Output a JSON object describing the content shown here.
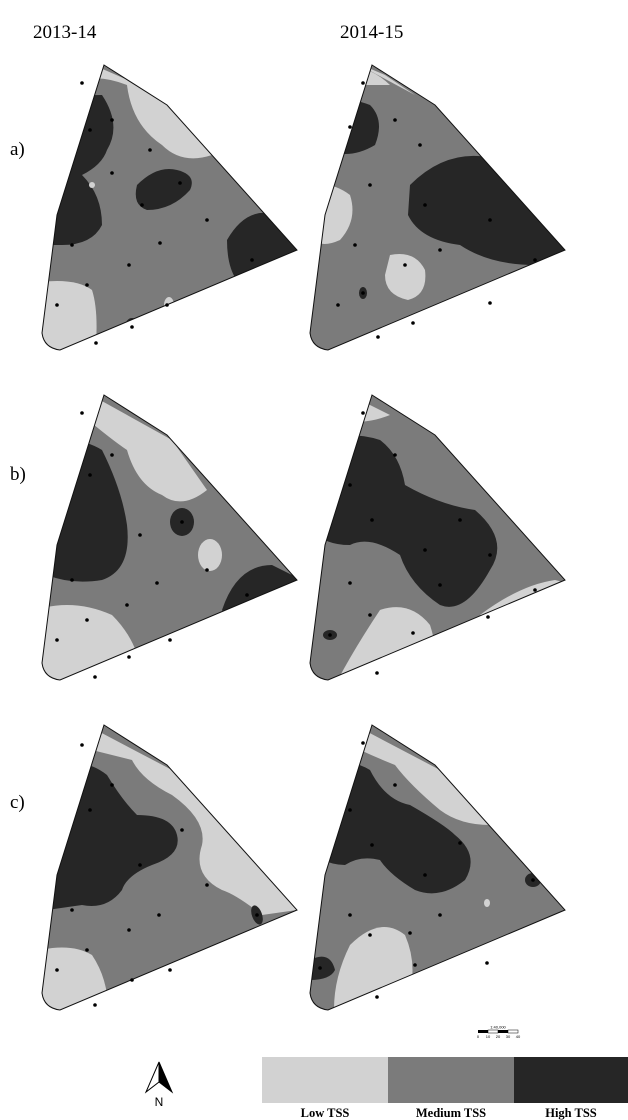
{
  "columns": [
    "2013-14",
    "2014-15"
  ],
  "rows": [
    "a)",
    "b)",
    "c)"
  ],
  "colors": {
    "low": "#d2d2d2",
    "medium": "#7b7b7b",
    "high": "#262626",
    "outline": "#111111",
    "point": "#000000"
  },
  "legend": {
    "items": [
      {
        "key": "low",
        "label": "Low TSS"
      },
      {
        "key": "medium",
        "label": "Medium TSS"
      },
      {
        "key": "high",
        "label": "High TSS"
      }
    ]
  },
  "north_arrow": {
    "label": "N"
  },
  "scale_bar": {
    "title": "1:40,000",
    "ticks": [
      "0",
      "10",
      "20",
      "30",
      "40"
    ]
  }
}
